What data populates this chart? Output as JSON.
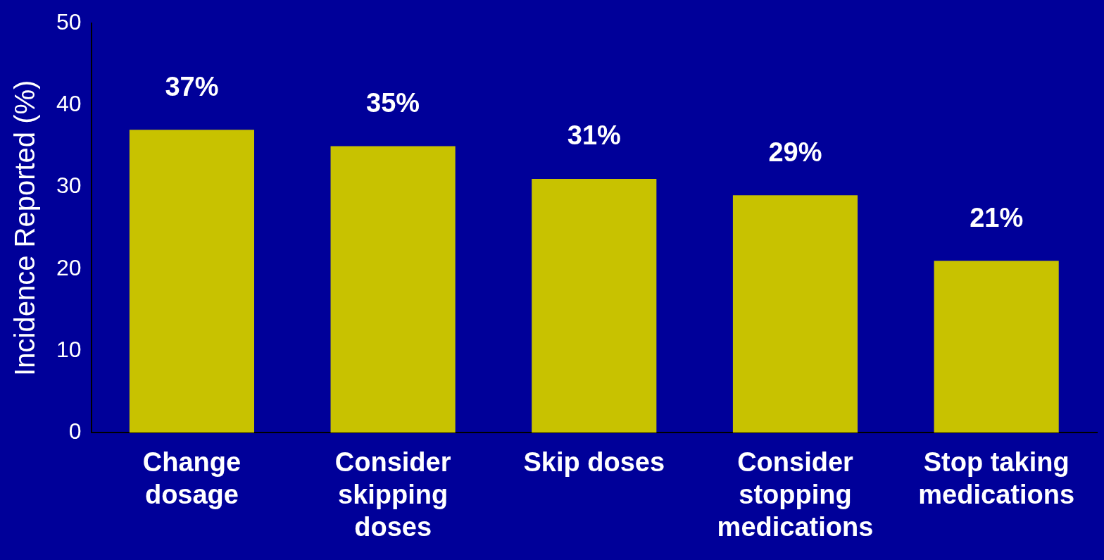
{
  "chart_data": {
    "type": "bar",
    "ylabel": "Incidence Reported (%)",
    "categories": [
      "Change dosage",
      "Consider skipping doses",
      "Skip doses",
      "Consider stopping medications",
      "Stop taking medications"
    ],
    "values": [
      37,
      35,
      31,
      29,
      21
    ],
    "value_labels": [
      "37%",
      "35%",
      "31%",
      "29%",
      "21%"
    ],
    "color": "#c8c200",
    "ylim": [
      0,
      50
    ],
    "yticks": [
      0,
      10,
      20,
      30,
      40,
      50
    ],
    "grid": false,
    "legend": false
  }
}
